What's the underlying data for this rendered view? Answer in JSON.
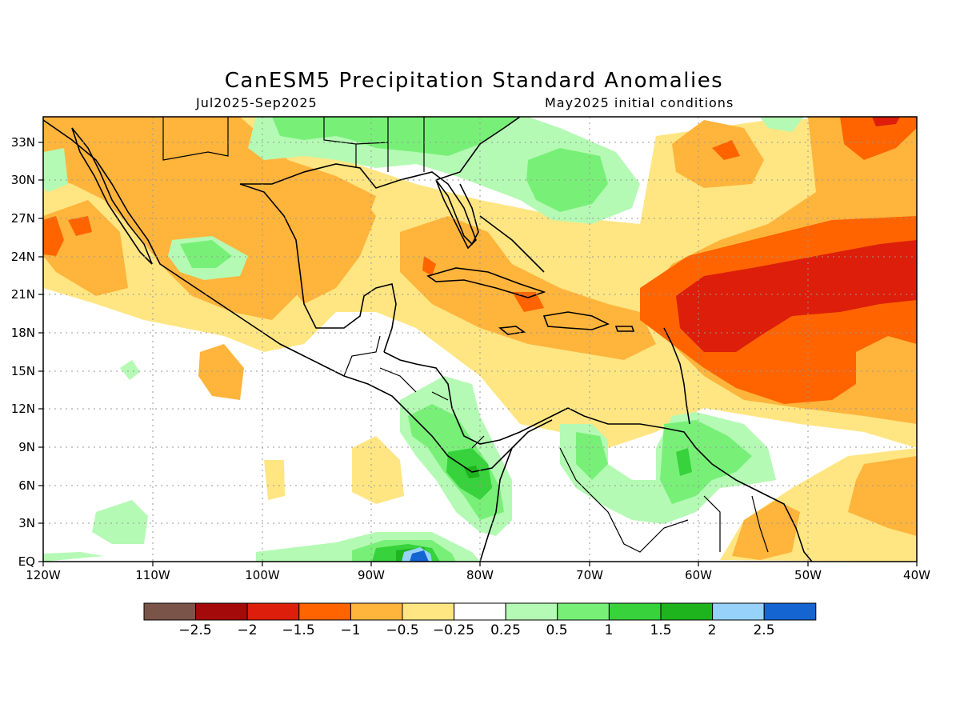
{
  "title": "CanESM5 Precipitation Standard Anomalies",
  "subtitle_left": "Jul2025-Sep2025",
  "subtitle_right": "May2025 initial conditions",
  "map": {
    "lon_range": [
      -120,
      -40
    ],
    "lat_range": [
      0,
      35
    ],
    "lon_tick_labels": [
      "120W",
      "110W",
      "100W",
      "90W",
      "80W",
      "70W",
      "60W",
      "50W",
      "40W"
    ],
    "lat_tick_labels": [
      "EQ",
      "3N",
      "6N",
      "9N",
      "12N",
      "15N",
      "18N",
      "21N",
      "24N",
      "27N",
      "30N",
      "33N"
    ],
    "gridlines": true,
    "region": "Caribbean, Central America, Gulf of Mexico and tropical Atlantic"
  },
  "colorbar": {
    "colors": [
      "#7a5448",
      "#a50a0a",
      "#dc1e0a",
      "#ff6400",
      "#ffb43c",
      "#ffe682",
      "#ffffff",
      "#b4fab4",
      "#78f078",
      "#37d23c",
      "#1eb41e",
      "#96d2fa",
      "#1464d2"
    ],
    "labels": [
      "−2.5",
      "−2",
      "−1.5",
      "−1",
      "−0.5",
      "−0.25",
      "0.25",
      "0.5",
      "1",
      "1.5",
      "2",
      "2.5"
    ]
  },
  "anomaly_regions": [
    {
      "name": "Central tropical Atlantic east of Lesser Antilles",
      "level": "-2 to -1.5"
    },
    {
      "name": "Tropical Atlantic broad area 15N-25N",
      "level": "-1.5 to -1"
    },
    {
      "name": "Hispaniola / Haiti",
      "level": "-1.5 to -1"
    },
    {
      "name": "Caribbean Sea north of South America",
      "level": "-1 to -0.5"
    },
    {
      "name": "Gulf of Mexico and Mexico",
      "level": "-1 to -0.5"
    },
    {
      "name": "Panama / Costa Rica",
      "level": "1 to 1.5"
    },
    {
      "name": "Eastern Pacific near 85W, EQ",
      "level": "2 to 2.5"
    },
    {
      "name": "Southeastern United States",
      "level": "0.5 to 1"
    },
    {
      "name": "Venezuela / Guyana",
      "level": "0.5 to 1"
    }
  ]
}
